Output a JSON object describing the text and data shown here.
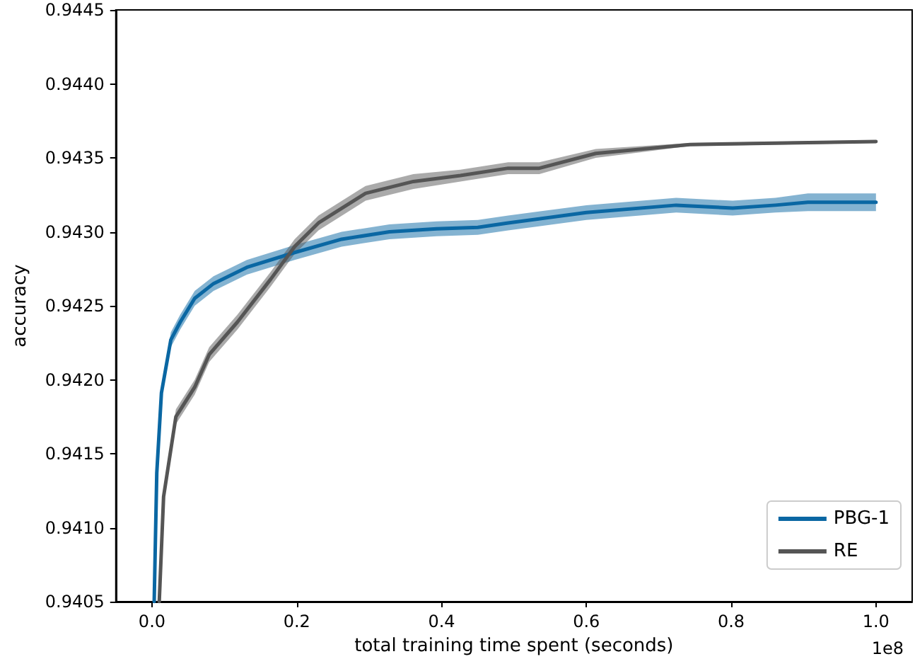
{
  "chart_data": {
    "type": "line",
    "xlabel": "total training time spent (seconds)",
    "ylabel": "accuracy",
    "annotations": [
      "1e8"
    ],
    "xlim": [
      -0.05,
      1.05
    ],
    "xticks": [
      {
        "value": 0,
        "label": "0.0"
      },
      0.2,
      0.4,
      0.6,
      0.8,
      {
        "value": 1,
        "label": "1.0"
      }
    ],
    "ylim": [
      0.9405,
      0.9445
    ],
    "yticks": [
      0.9405,
      {
        "value": 0.941,
        "label": "0.9410"
      },
      0.9415,
      {
        "value": 0.942,
        "label": "0.9420"
      },
      0.9425,
      {
        "value": 0.943,
        "label": "0.9430"
      },
      0.9435,
      {
        "value": 0.944,
        "label": "0.9440"
      },
      0.9445
    ],
    "grid": false,
    "legend": "bottom right",
    "marker": "none",
    "line_style": "solid",
    "series": [
      {
        "name": "PBG-1",
        "color": "#0a67a3",
        "x": [
          0.003,
          0.0066,
          0.013,
          0.026,
          0.039,
          0.059,
          0.085,
          0.131,
          0.197,
          0.262,
          0.328,
          0.393,
          0.45,
          0.492,
          0.6,
          0.724,
          0.802,
          0.861,
          0.906,
          1.0
        ],
        "values": [
          0.9405,
          0.94137,
          0.94191,
          0.94227,
          0.94239,
          0.94255,
          0.94265,
          0.94276,
          0.94286,
          0.94295,
          0.943,
          0.94302,
          0.94303,
          0.94306,
          0.94313,
          0.94318,
          0.94316,
          0.94318,
          0.9432,
          0.9432
        ],
        "lower": [
          0.9405,
          0.94134,
          0.94187,
          0.94222,
          0.94234,
          0.9425,
          0.9426,
          0.94271,
          0.94281,
          0.9429,
          0.94295,
          0.94297,
          0.94298,
          0.94301,
          0.94308,
          0.94313,
          0.94311,
          0.94313,
          0.94314,
          0.94314
        ],
        "upper": [
          0.9405,
          0.9414,
          0.94195,
          0.94232,
          0.94244,
          0.9426,
          0.9427,
          0.94281,
          0.94291,
          0.943,
          0.94305,
          0.94307,
          0.94308,
          0.94311,
          0.94318,
          0.94323,
          0.94321,
          0.94323,
          0.94326,
          0.94326
        ]
      },
      {
        "name": "RE",
        "color": "#555555",
        "x": [
          0.01,
          0.016,
          0.033,
          0.059,
          0.079,
          0.118,
          0.164,
          0.197,
          0.23,
          0.295,
          0.361,
          0.426,
          0.492,
          0.535,
          0.613,
          0.678,
          0.743,
          1.0
        ],
        "values": [
          0.9405,
          0.94121,
          0.94175,
          0.94195,
          0.94217,
          0.94239,
          0.94268,
          0.9429,
          0.94306,
          0.94326,
          0.94334,
          0.94338,
          0.94343,
          0.94343,
          0.94353,
          0.94356,
          0.94359,
          0.94361
        ],
        "lower": [
          0.9405,
          0.94117,
          0.9417,
          0.9419,
          0.94212,
          0.94234,
          0.94263,
          0.94285,
          0.94301,
          0.94321,
          0.94329,
          0.94334,
          0.94339,
          0.94339,
          0.9435,
          0.94354,
          0.94358,
          0.9436
        ],
        "upper": [
          0.9405,
          0.94125,
          0.9418,
          0.942,
          0.94222,
          0.94244,
          0.94273,
          0.94295,
          0.94311,
          0.94331,
          0.94339,
          0.94342,
          0.94347,
          0.94347,
          0.94356,
          0.94358,
          0.9436,
          0.94362
        ]
      }
    ]
  }
}
